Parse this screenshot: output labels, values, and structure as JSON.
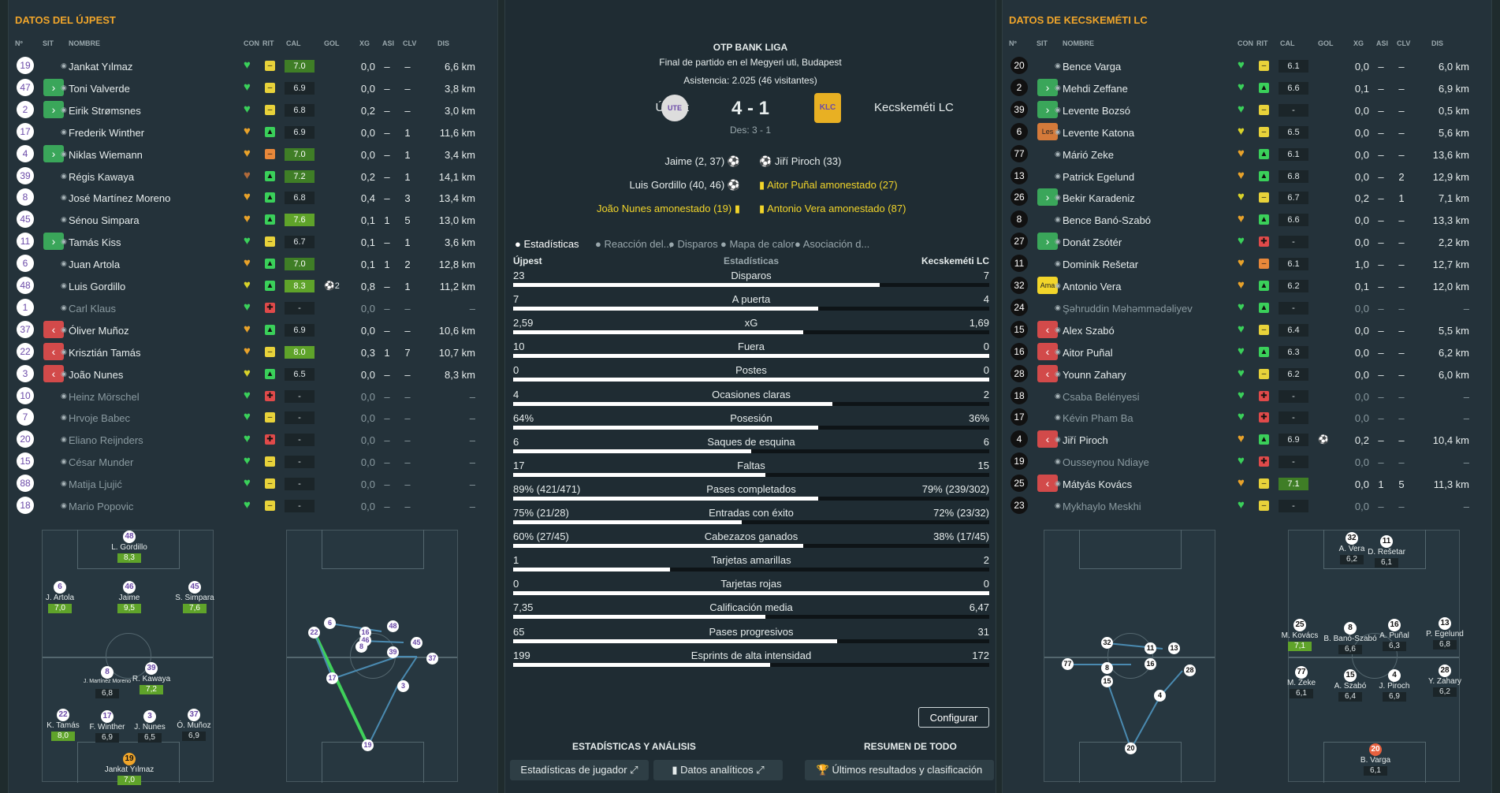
{
  "left": {
    "title": "DATOS DEL ÚJPEST",
    "headers": [
      "Nº",
      "SIT",
      "NOMBRE",
      "CON",
      "RIT",
      "CAL",
      "GOL",
      "XG",
      "ASI",
      "CLV",
      "DIS"
    ],
    "players": [
      {
        "n": "19",
        "sit": "",
        "name": "Jankat Yılmaz",
        "con": "green",
        "rit": "yellow",
        "cal": "7.0",
        "gol": "",
        "xg": "0,0",
        "asi": "–",
        "clv": "–",
        "dis": "6,6 km",
        "sub": false
      },
      {
        "n": "47",
        "sit": "in",
        "name": "Toni Valverde",
        "con": "green",
        "rit": "yellow",
        "cal": "6.9",
        "gol": "",
        "xg": "0,0",
        "asi": "–",
        "clv": "–",
        "dis": "3,8 km",
        "sub": false
      },
      {
        "n": "2",
        "sit": "in",
        "name": "Eirik Strømsnes",
        "con": "green",
        "rit": "yellow",
        "cal": "6.8",
        "gol": "",
        "xg": "0,2",
        "asi": "–",
        "clv": "–",
        "dis": "3,0 km",
        "sub": false
      },
      {
        "n": "17",
        "sit": "",
        "name": "Frederik Winther",
        "con": "orange",
        "rit": "green",
        "cal": "6.9",
        "gol": "",
        "xg": "0,0",
        "asi": "–",
        "clv": "1",
        "dis": "11,6 km",
        "sub": false
      },
      {
        "n": "4",
        "sit": "in",
        "name": "Niklas Wiemann",
        "con": "orange",
        "rit": "orange",
        "cal": "7.0",
        "gol": "",
        "xg": "0,0",
        "asi": "–",
        "clv": "1",
        "dis": "3,4 km",
        "sub": false
      },
      {
        "n": "39",
        "sit": "",
        "name": "Régis Kawaya",
        "con": "brown",
        "rit": "green",
        "cal": "7.2",
        "gol": "",
        "xg": "0,2",
        "asi": "–",
        "clv": "1",
        "dis": "14,1 km",
        "sub": false
      },
      {
        "n": "8",
        "sit": "",
        "name": "José Martínez Moreno",
        "con": "orange",
        "rit": "green",
        "cal": "6.8",
        "gol": "",
        "xg": "0,4",
        "asi": "–",
        "clv": "3",
        "dis": "13,4 km",
        "sub": false
      },
      {
        "n": "45",
        "sit": "",
        "name": "Sénou Simpara",
        "con": "orange",
        "rit": "green",
        "cal": "7.6",
        "gol": "",
        "xg": "0,1",
        "asi": "1",
        "clv": "5",
        "dis": "13,0 km",
        "sub": false
      },
      {
        "n": "11",
        "sit": "in",
        "name": "Tamás Kiss",
        "con": "green",
        "rit": "yellow",
        "cal": "6.7",
        "gol": "",
        "xg": "0,1",
        "asi": "–",
        "clv": "1",
        "dis": "3,6 km",
        "sub": false
      },
      {
        "n": "6",
        "sit": "",
        "name": "Juan Artola",
        "con": "orange",
        "rit": "green",
        "cal": "7.0",
        "gol": "",
        "xg": "0,1",
        "asi": "1",
        "clv": "2",
        "dis": "12,8 km",
        "sub": false
      },
      {
        "n": "48",
        "sit": "",
        "name": "Luis Gordillo",
        "con": "yellow",
        "rit": "green",
        "cal": "8.3",
        "gol": "⚽2",
        "xg": "0,8",
        "asi": "–",
        "clv": "1",
        "dis": "11,2 km",
        "sub": false
      },
      {
        "n": "1",
        "sit": "",
        "name": "Carl Klaus",
        "con": "green",
        "rit": "red",
        "cal": "-",
        "gol": "",
        "xg": "0,0",
        "asi": "–",
        "clv": "–",
        "dis": "–",
        "sub": true
      },
      {
        "n": "37",
        "sit": "out",
        "name": "Óliver Muñoz",
        "con": "orange",
        "rit": "green",
        "cal": "6.9",
        "gol": "",
        "xg": "0,0",
        "asi": "–",
        "clv": "–",
        "dis": "10,6 km",
        "sub": false
      },
      {
        "n": "22",
        "sit": "out",
        "name": "Krisztián Tamás",
        "con": "orange",
        "rit": "yellow",
        "cal": "8.0",
        "gol": "",
        "xg": "0,3",
        "asi": "1",
        "clv": "7",
        "dis": "10,7 km",
        "sub": false
      },
      {
        "n": "3",
        "sit": "out",
        "name": "João Nunes",
        "con": "yellow",
        "rit": "green",
        "cal": "6.5",
        "gol": "",
        "xg": "0,0",
        "asi": "–",
        "clv": "–",
        "dis": "8,3 km",
        "sub": false
      },
      {
        "n": "10",
        "sit": "",
        "name": "Heinz Mörschel",
        "con": "green",
        "rit": "red",
        "cal": "-",
        "gol": "",
        "xg": "0,0",
        "asi": "–",
        "clv": "–",
        "dis": "–",
        "sub": true
      },
      {
        "n": "7",
        "sit": "",
        "name": "Hrvoje Babec",
        "con": "green",
        "rit": "yellow",
        "cal": "-",
        "gol": "",
        "xg": "0,0",
        "asi": "–",
        "clv": "–",
        "dis": "–",
        "sub": true
      },
      {
        "n": "20",
        "sit": "",
        "name": "Eliano Reijnders",
        "con": "green",
        "rit": "red",
        "cal": "-",
        "gol": "",
        "xg": "0,0",
        "asi": "–",
        "clv": "–",
        "dis": "–",
        "sub": true
      },
      {
        "n": "15",
        "sit": "",
        "name": "César Munder",
        "con": "green",
        "rit": "yellow",
        "cal": "-",
        "gol": "",
        "xg": "0,0",
        "asi": "–",
        "clv": "–",
        "dis": "–",
        "sub": true
      },
      {
        "n": "88",
        "sit": "",
        "name": "Matija Ljujić",
        "con": "green",
        "rit": "yellow",
        "cal": "-",
        "gol": "",
        "xg": "0,0",
        "asi": "–",
        "clv": "–",
        "dis": "–",
        "sub": true
      },
      {
        "n": "18",
        "sit": "",
        "name": "Mario Popovic",
        "con": "green",
        "rit": "yellow",
        "cal": "-",
        "gol": "",
        "xg": "0,0",
        "asi": "–",
        "clv": "–",
        "dis": "–",
        "sub": true
      }
    ]
  },
  "right": {
    "title": "DATOS DE KECSKEMÉTI LC",
    "headers": [
      "Nº",
      "SIT",
      "NOMBRE",
      "CON",
      "RIT",
      "CAL",
      "GOL",
      "XG",
      "ASI",
      "CLV",
      "DIS"
    ],
    "players": [
      {
        "n": "20",
        "sit": "",
        "name": "Bence Varga",
        "con": "green",
        "rit": "yellow",
        "cal": "6.1",
        "gol": "",
        "xg": "0,0",
        "asi": "–",
        "clv": "–",
        "dis": "6,0 km",
        "sub": false
      },
      {
        "n": "2",
        "sit": "in",
        "name": "Mehdi Zeffane",
        "con": "green",
        "rit": "green",
        "cal": "6.6",
        "gol": "",
        "xg": "0,1",
        "asi": "–",
        "clv": "–",
        "dis": "6,9 km",
        "sub": false
      },
      {
        "n": "39",
        "sit": "in",
        "name": "Levente Bozsó",
        "con": "green",
        "rit": "yellow",
        "cal": "-",
        "gol": "",
        "xg": "0,0",
        "asi": "–",
        "clv": "–",
        "dis": "0,5 km",
        "sub": false
      },
      {
        "n": "6",
        "sit": "les",
        "name": "Levente Katona",
        "con": "yellow",
        "rit": "yellow",
        "cal": "6.5",
        "gol": "",
        "xg": "0,0",
        "asi": "–",
        "clv": "–",
        "dis": "5,6 km",
        "sub": false
      },
      {
        "n": "77",
        "sit": "",
        "name": "Márió Zeke",
        "con": "orange",
        "rit": "green",
        "cal": "6.1",
        "gol": "",
        "xg": "0,0",
        "asi": "–",
        "clv": "–",
        "dis": "13,6 km",
        "sub": false
      },
      {
        "n": "13",
        "sit": "",
        "name": "Patrick Egelund",
        "con": "orange",
        "rit": "green",
        "cal": "6.8",
        "gol": "",
        "xg": "0,0",
        "asi": "–",
        "clv": "2",
        "dis": "12,9 km",
        "sub": false
      },
      {
        "n": "26",
        "sit": "in",
        "name": "Bekir Karadeniz",
        "con": "yellow",
        "rit": "yellow",
        "cal": "6.7",
        "gol": "",
        "xg": "0,2",
        "asi": "–",
        "clv": "1",
        "dis": "7,1 km",
        "sub": false
      },
      {
        "n": "8",
        "sit": "",
        "name": "Bence Banó-Szabó",
        "con": "orange",
        "rit": "green",
        "cal": "6.6",
        "gol": "",
        "xg": "0,0",
        "asi": "–",
        "clv": "–",
        "dis": "13,3 km",
        "sub": false
      },
      {
        "n": "27",
        "sit": "in",
        "name": "Donát Zsótér",
        "con": "green",
        "rit": "red",
        "cal": "-",
        "gol": "",
        "xg": "0,0",
        "asi": "–",
        "clv": "–",
        "dis": "2,2 km",
        "sub": false
      },
      {
        "n": "11",
        "sit": "",
        "name": "Dominik Rešetar",
        "con": "orange",
        "rit": "orange",
        "cal": "6.1",
        "gol": "",
        "xg": "1,0",
        "asi": "–",
        "clv": "–",
        "dis": "12,7 km",
        "sub": false
      },
      {
        "n": "32",
        "sit": "ama",
        "name": "Antonio Vera",
        "con": "orange",
        "rit": "green",
        "cal": "6.2",
        "gol": "",
        "xg": "0,1",
        "asi": "–",
        "clv": "–",
        "dis": "12,0 km",
        "sub": false
      },
      {
        "n": "24",
        "sit": "",
        "name": "Şəhruddin Məhəmmədəliyev",
        "con": "green",
        "rit": "green",
        "cal": "-",
        "gol": "",
        "xg": "0,0",
        "asi": "–",
        "clv": "–",
        "dis": "–",
        "sub": true
      },
      {
        "n": "15",
        "sit": "out",
        "name": "Alex Szabó",
        "con": "green",
        "rit": "yellow",
        "cal": "6.4",
        "gol": "",
        "xg": "0,0",
        "asi": "–",
        "clv": "–",
        "dis": "5,5 km",
        "sub": false
      },
      {
        "n": "16",
        "sit": "out",
        "name": "Aitor Puñal",
        "con": "green",
        "rit": "green",
        "cal": "6.3",
        "gol": "",
        "xg": "0,0",
        "asi": "–",
        "clv": "–",
        "dis": "6,2 km",
        "sub": false
      },
      {
        "n": "28",
        "sit": "out",
        "name": "Younn Zahary",
        "con": "green",
        "rit": "yellow",
        "cal": "6.2",
        "gol": "",
        "xg": "0,0",
        "asi": "–",
        "clv": "–",
        "dis": "6,0 km",
        "sub": false
      },
      {
        "n": "18",
        "sit": "",
        "name": "Csaba Belényesi",
        "con": "green",
        "rit": "red",
        "cal": "-",
        "gol": "",
        "xg": "0,0",
        "asi": "–",
        "clv": "–",
        "dis": "–",
        "sub": true
      },
      {
        "n": "17",
        "sit": "",
        "name": "Kévin Pham Ba",
        "con": "green",
        "rit": "red",
        "cal": "-",
        "gol": "",
        "xg": "0,0",
        "asi": "–",
        "clv": "–",
        "dis": "–",
        "sub": true
      },
      {
        "n": "4",
        "sit": "out",
        "name": "Jiří Piroch",
        "con": "orange",
        "rit": "green",
        "cal": "6.9",
        "gol": "⚽",
        "xg": "0,2",
        "asi": "–",
        "clv": "–",
        "dis": "10,4 km",
        "sub": false
      },
      {
        "n": "19",
        "sit": "",
        "name": "Ousseynou Ndiaye",
        "con": "green",
        "rit": "red",
        "cal": "-",
        "gol": "",
        "xg": "0,0",
        "asi": "–",
        "clv": "–",
        "dis": "–",
        "sub": true
      },
      {
        "n": "25",
        "sit": "out",
        "name": "Mátyás Kovács",
        "con": "orange",
        "rit": "yellow",
        "cal": "7.1",
        "gol": "",
        "xg": "0,0",
        "asi": "1",
        "clv": "5",
        "dis": "11,3 km",
        "sub": false
      },
      {
        "n": "23",
        "sit": "",
        "name": "Mykhaylo Meskhi",
        "con": "green",
        "rit": "yellow",
        "cal": "-",
        "gol": "",
        "xg": "0,0",
        "asi": "–",
        "clv": "–",
        "dis": "–",
        "sub": true
      }
    ]
  },
  "match": {
    "league": "OTP BANK LIGA",
    "venue": "Final de partido en el Megyeri uti, Budapest",
    "attendance": "Asistencia: 2.025 (46 visitantes)",
    "home": "Újpest",
    "away": "Kecskeméti LC",
    "score": "4 - 1",
    "halftime": "Des: 3 - 1",
    "home_crest": "UTE",
    "away_crest": "KLC",
    "home_events": [
      "Jaime (2, 37)",
      "Luis Gordillo (40, 46)",
      "João Nunes amonestado (19)"
    ],
    "away_events": [
      "Jiří Piroch (33)",
      "Aitor Puñal amonestado (27)",
      "Antonio Vera amonestado (87)"
    ]
  },
  "tabs": [
    "Estadísticas",
    "Reacción del...",
    "Disparos",
    "Mapa de calor",
    "Asociación d..."
  ],
  "stats_header": {
    "home": "Újpest",
    "center": "Estadísticas",
    "away": "Kecskeméti LC"
  },
  "stats": [
    {
      "label": "Disparos",
      "home": "23",
      "away": "7",
      "share": 0.77
    },
    {
      "label": "A puerta",
      "home": "7",
      "away": "4",
      "share": 0.64
    },
    {
      "label": "xG",
      "home": "2,59",
      "away": "1,69",
      "share": 0.61
    },
    {
      "label": "Fuera",
      "home": "10",
      "away": "0",
      "share": 1.0
    },
    {
      "label": "Postes",
      "home": "0",
      "away": "0",
      "share": 1.0
    },
    {
      "label": "Ocasiones claras",
      "home": "4",
      "away": "2",
      "share": 0.67
    },
    {
      "label": "Posesión",
      "home": "64%",
      "away": "36%",
      "share": 0.64
    },
    {
      "label": "Saques de esquina",
      "home": "6",
      "away": "6",
      "share": 0.5
    },
    {
      "label": "Faltas",
      "home": "17",
      "away": "15",
      "share": 0.53
    },
    {
      "label": "Pases completados",
      "home": "89% (421/471)",
      "away": "79% (239/302)",
      "share": 0.64
    },
    {
      "label": "Entradas con éxito",
      "home": "75% (21/28)",
      "away": "72% (23/32)",
      "share": 0.48
    },
    {
      "label": "Cabezazos ganados",
      "home": "60% (27/45)",
      "away": "38% (17/45)",
      "share": 0.61
    },
    {
      "label": "Tarjetas amarillas",
      "home": "1",
      "away": "2",
      "share": 0.33
    },
    {
      "label": "Tarjetas rojas",
      "home": "0",
      "away": "0",
      "share": 1.0
    },
    {
      "label": "Calificación media",
      "home": "7,35",
      "away": "6,47",
      "share": 0.53
    },
    {
      "label": "Pases progresivos",
      "home": "65",
      "away": "31",
      "share": 0.68
    },
    {
      "label": "Esprints de alta intensidad",
      "home": "199",
      "away": "172",
      "share": 0.54
    }
  ],
  "configure": "Configurar",
  "footer": {
    "left_title": "ESTADÍSTICAS Y ANÁLISIS",
    "right_title": "RESUMEN DE TODO",
    "btn1": "Estadísticas de jugador",
    "btn2": "Datos analíticos",
    "btn3": "Últimos resultados y clasificación"
  },
  "left_lineup": [
    {
      "n": "48",
      "name": "L. Gordillo",
      "r": "8,3",
      "g": true
    },
    {
      "n": "6",
      "name": "J. Artola",
      "r": "7,0",
      "g": true
    },
    {
      "n": "46",
      "name": "Jaime",
      "r": "9,5",
      "g": true
    },
    {
      "n": "45",
      "name": "S. Simpara",
      "r": "7,6",
      "g": true
    },
    {
      "n": "8",
      "name": "J. Martínez Moreno",
      "r": "6,8",
      "g": false
    },
    {
      "n": "39",
      "name": "R. Kawaya",
      "r": "7,2",
      "g": true
    },
    {
      "n": "22",
      "name": "K. Tamás",
      "r": "8,0",
      "g": true
    },
    {
      "n": "17",
      "name": "F. Winther",
      "r": "6,9",
      "g": false
    },
    {
      "n": "3",
      "name": "J. Nunes",
      "r": "6,5",
      "g": false
    },
    {
      "n": "37",
      "name": "Ó. Muñoz",
      "r": "6,9",
      "g": false
    },
    {
      "n": "19",
      "name": "Jankat Yılmaz",
      "r": "7,0",
      "g": true
    }
  ],
  "right_lineup": [
    {
      "n": "32",
      "name": "A. Vera",
      "r": "6,2",
      "g": false
    },
    {
      "n": "11",
      "name": "D. Rešetar",
      "r": "6,1",
      "g": false
    },
    {
      "n": "25",
      "name": "M. Kovács",
      "r": "7,1",
      "g": true
    },
    {
      "n": "8",
      "name": "B. Banó-Szabó",
      "r": "6,6",
      "g": false
    },
    {
      "n": "16",
      "name": "A. Puñal",
      "r": "6,3",
      "g": false
    },
    {
      "n": "13",
      "name": "P. Egelund",
      "r": "6,8",
      "g": false
    },
    {
      "n": "77",
      "name": "M. Zeke",
      "r": "6,1",
      "g": false
    },
    {
      "n": "15",
      "name": "A. Szabó",
      "r": "6,4",
      "g": false
    },
    {
      "n": "4",
      "name": "J. Piroch",
      "r": "6,9",
      "g": false
    },
    {
      "n": "28",
      "name": "Y. Zahary",
      "r": "6,2",
      "g": false
    },
    {
      "n": "20",
      "name": "B. Varga",
      "r": "6,1",
      "g": false
    }
  ],
  "left_passmap": [
    "22",
    "6",
    "16",
    "48",
    "46",
    "8",
    "39",
    "45",
    "37",
    "17",
    "3",
    "19"
  ],
  "right_passmap": [
    "32",
    "11",
    "13",
    "77",
    "8",
    "16",
    "28",
    "15",
    "4",
    "20"
  ],
  "colors": {
    "accent": "#f0a52a",
    "green": "#3aa65a",
    "red": "#d24a4a",
    "rating_green": "#5fa32a"
  }
}
